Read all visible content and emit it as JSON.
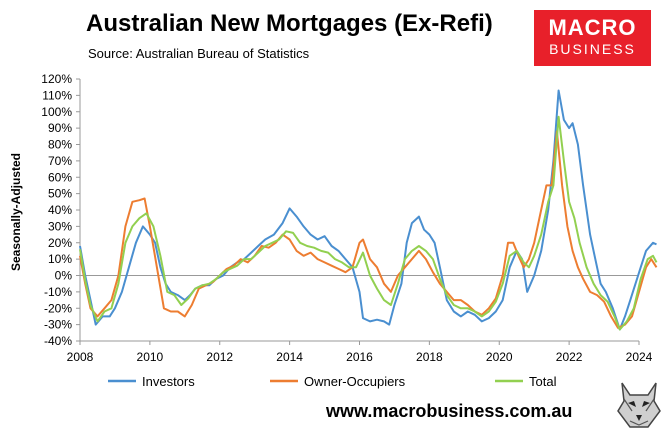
{
  "title": "Australian New Mortgages (Ex-Refi)",
  "subtitle": "Source: Australian Bureau of Statistics",
  "brand": {
    "line1": "MACRO",
    "line2": "BUSINESS",
    "color": "#e8202a"
  },
  "website": "www.macrobusiness.com.au",
  "chart_data": {
    "type": "line",
    "title": "Australian New Mortgages (Ex-Refi)",
    "ylabel": "Seasonally-Adjusted",
    "xlabel": "",
    "xlim": [
      2008,
      2024
    ],
    "ylim": [
      -40,
      120
    ],
    "y_ticks": [
      "120%",
      "110%",
      "100%",
      "90%",
      "80%",
      "70%",
      "60%",
      "50%",
      "40%",
      "30%",
      "20%",
      "10%",
      "0%",
      "-10%",
      "-20%",
      "-30%",
      "-40%"
    ],
    "x_ticks": [
      "2008",
      "2010",
      "2012",
      "2014",
      "2016",
      "2018",
      "2020",
      "2022",
      "2024"
    ],
    "grid": false,
    "legend_position": "bottom",
    "series": [
      {
        "name": "Investors",
        "color": "#4a8fd0",
        "points": [
          [
            2008.0,
            18
          ],
          [
            2008.15,
            0
          ],
          [
            2008.3,
            -15
          ],
          [
            2008.45,
            -30
          ],
          [
            2008.65,
            -25
          ],
          [
            2008.85,
            -25
          ],
          [
            2009.0,
            -20
          ],
          [
            2009.2,
            -10
          ],
          [
            2009.4,
            5
          ],
          [
            2009.6,
            20
          ],
          [
            2009.8,
            30
          ],
          [
            2010.0,
            25
          ],
          [
            2010.15,
            20
          ],
          [
            2010.3,
            5
          ],
          [
            2010.45,
            -5
          ],
          [
            2010.6,
            -10
          ],
          [
            2010.8,
            -12
          ],
          [
            2011.0,
            -15
          ],
          [
            2011.15,
            -12
          ],
          [
            2011.3,
            -8
          ],
          [
            2011.5,
            -6
          ],
          [
            2011.7,
            -6
          ],
          [
            2011.9,
            -2
          ],
          [
            2012.1,
            0
          ],
          [
            2012.3,
            5
          ],
          [
            2012.5,
            8
          ],
          [
            2012.7,
            10
          ],
          [
            2012.9,
            14
          ],
          [
            2013.1,
            18
          ],
          [
            2013.3,
            22
          ],
          [
            2013.55,
            25
          ],
          [
            2013.8,
            32
          ],
          [
            2014.0,
            41
          ],
          [
            2014.2,
            36
          ],
          [
            2014.4,
            30
          ],
          [
            2014.6,
            25
          ],
          [
            2014.8,
            22
          ],
          [
            2015.0,
            24
          ],
          [
            2015.2,
            18
          ],
          [
            2015.4,
            15
          ],
          [
            2015.6,
            10
          ],
          [
            2015.8,
            5
          ],
          [
            2016.0,
            -10
          ],
          [
            2016.1,
            -26
          ],
          [
            2016.3,
            -28
          ],
          [
            2016.5,
            -27
          ],
          [
            2016.7,
            -28
          ],
          [
            2016.85,
            -30
          ],
          [
            2017.0,
            -18
          ],
          [
            2017.2,
            -5
          ],
          [
            2017.35,
            20
          ],
          [
            2017.5,
            32
          ],
          [
            2017.7,
            36
          ],
          [
            2017.85,
            28
          ],
          [
            2018.0,
            25
          ],
          [
            2018.15,
            20
          ],
          [
            2018.3,
            5
          ],
          [
            2018.5,
            -15
          ],
          [
            2018.7,
            -22
          ],
          [
            2018.9,
            -25
          ],
          [
            2019.1,
            -22
          ],
          [
            2019.3,
            -24
          ],
          [
            2019.5,
            -28
          ],
          [
            2019.7,
            -26
          ],
          [
            2019.9,
            -22
          ],
          [
            2020.1,
            -15
          ],
          [
            2020.3,
            5
          ],
          [
            2020.5,
            15
          ],
          [
            2020.65,
            10
          ],
          [
            2020.8,
            -10
          ],
          [
            2021.0,
            0
          ],
          [
            2021.2,
            15
          ],
          [
            2021.4,
            40
          ],
          [
            2021.55,
            70
          ],
          [
            2021.7,
            113
          ],
          [
            2021.85,
            95
          ],
          [
            2022.0,
            90
          ],
          [
            2022.1,
            93
          ],
          [
            2022.25,
            80
          ],
          [
            2022.4,
            55
          ],
          [
            2022.6,
            25
          ],
          [
            2022.75,
            10
          ],
          [
            2022.9,
            -5
          ],
          [
            2023.05,
            -10
          ],
          [
            2023.25,
            -20
          ],
          [
            2023.45,
            -33
          ],
          [
            2023.6,
            -25
          ],
          [
            2023.75,
            -15
          ],
          [
            2023.9,
            -5
          ],
          [
            2024.05,
            5
          ],
          [
            2024.2,
            15
          ],
          [
            2024.4,
            20
          ],
          [
            2024.5,
            19
          ]
        ]
      },
      {
        "name": "Owner-Occupiers",
        "color": "#ed7d31",
        "points": [
          [
            2008.0,
            12
          ],
          [
            2008.15,
            -5
          ],
          [
            2008.3,
            -20
          ],
          [
            2008.5,
            -25
          ],
          [
            2008.7,
            -20
          ],
          [
            2008.9,
            -15
          ],
          [
            2009.1,
            0
          ],
          [
            2009.3,
            30
          ],
          [
            2009.5,
            45
          ],
          [
            2009.7,
            46
          ],
          [
            2009.85,
            47
          ],
          [
            2010.0,
            30
          ],
          [
            2010.2,
            5
          ],
          [
            2010.4,
            -20
          ],
          [
            2010.6,
            -22
          ],
          [
            2010.8,
            -22
          ],
          [
            2011.0,
            -25
          ],
          [
            2011.2,
            -18
          ],
          [
            2011.4,
            -8
          ],
          [
            2011.6,
            -6
          ],
          [
            2011.8,
            -4
          ],
          [
            2012.0,
            0
          ],
          [
            2012.2,
            4
          ],
          [
            2012.4,
            6
          ],
          [
            2012.6,
            10
          ],
          [
            2012.8,
            8
          ],
          [
            2013.0,
            12
          ],
          [
            2013.2,
            18
          ],
          [
            2013.4,
            17
          ],
          [
            2013.6,
            20
          ],
          [
            2013.8,
            25
          ],
          [
            2014.0,
            22
          ],
          [
            2014.2,
            15
          ],
          [
            2014.4,
            12
          ],
          [
            2014.6,
            14
          ],
          [
            2014.8,
            10
          ],
          [
            2015.0,
            8
          ],
          [
            2015.2,
            6
          ],
          [
            2015.4,
            4
          ],
          [
            2015.6,
            2
          ],
          [
            2015.8,
            5
          ],
          [
            2016.0,
            20
          ],
          [
            2016.1,
            22
          ],
          [
            2016.3,
            10
          ],
          [
            2016.5,
            5
          ],
          [
            2016.7,
            -5
          ],
          [
            2016.9,
            -10
          ],
          [
            2017.1,
            0
          ],
          [
            2017.3,
            5
          ],
          [
            2017.5,
            10
          ],
          [
            2017.7,
            15
          ],
          [
            2017.9,
            10
          ],
          [
            2018.1,
            2
          ],
          [
            2018.3,
            -5
          ],
          [
            2018.5,
            -10
          ],
          [
            2018.7,
            -15
          ],
          [
            2018.9,
            -15
          ],
          [
            2019.1,
            -18
          ],
          [
            2019.3,
            -22
          ],
          [
            2019.5,
            -24
          ],
          [
            2019.7,
            -20
          ],
          [
            2019.9,
            -14
          ],
          [
            2020.1,
            0
          ],
          [
            2020.25,
            20
          ],
          [
            2020.4,
            20
          ],
          [
            2020.55,
            12
          ],
          [
            2020.7,
            5
          ],
          [
            2020.85,
            10
          ],
          [
            2021.0,
            20
          ],
          [
            2021.15,
            35
          ],
          [
            2021.35,
            55
          ],
          [
            2021.5,
            55
          ],
          [
            2021.65,
            88
          ],
          [
            2021.8,
            55
          ],
          [
            2021.95,
            30
          ],
          [
            2022.1,
            15
          ],
          [
            2022.25,
            5
          ],
          [
            2022.4,
            -2
          ],
          [
            2022.6,
            -10
          ],
          [
            2022.8,
            -12
          ],
          [
            2023.0,
            -16
          ],
          [
            2023.2,
            -25
          ],
          [
            2023.4,
            -32
          ],
          [
            2023.6,
            -30
          ],
          [
            2023.8,
            -25
          ],
          [
            2024.0,
            -10
          ],
          [
            2024.2,
            5
          ],
          [
            2024.35,
            10
          ],
          [
            2024.5,
            5
          ]
        ]
      },
      {
        "name": "Total",
        "color": "#92d050",
        "points": [
          [
            2008.0,
            16
          ],
          [
            2008.15,
            -3
          ],
          [
            2008.3,
            -18
          ],
          [
            2008.5,
            -28
          ],
          [
            2008.7,
            -22
          ],
          [
            2008.9,
            -20
          ],
          [
            2009.1,
            -5
          ],
          [
            2009.3,
            20
          ],
          [
            2009.5,
            30
          ],
          [
            2009.7,
            35
          ],
          [
            2009.9,
            38
          ],
          [
            2010.1,
            30
          ],
          [
            2010.3,
            12
          ],
          [
            2010.5,
            -10
          ],
          [
            2010.7,
            -12
          ],
          [
            2010.9,
            -18
          ],
          [
            2011.1,
            -14
          ],
          [
            2011.3,
            -8
          ],
          [
            2011.5,
            -6
          ],
          [
            2011.7,
            -5
          ],
          [
            2011.9,
            -2
          ],
          [
            2012.1,
            2
          ],
          [
            2012.3,
            4
          ],
          [
            2012.5,
            6
          ],
          [
            2012.7,
            10
          ],
          [
            2012.9,
            10
          ],
          [
            2013.1,
            14
          ],
          [
            2013.3,
            18
          ],
          [
            2013.5,
            20
          ],
          [
            2013.7,
            22
          ],
          [
            2013.9,
            27
          ],
          [
            2014.1,
            26
          ],
          [
            2014.3,
            20
          ],
          [
            2014.5,
            18
          ],
          [
            2014.7,
            17
          ],
          [
            2014.9,
            15
          ],
          [
            2015.1,
            14
          ],
          [
            2015.3,
            10
          ],
          [
            2015.5,
            8
          ],
          [
            2015.7,
            5
          ],
          [
            2015.9,
            5
          ],
          [
            2016.1,
            14
          ],
          [
            2016.3,
            0
          ],
          [
            2016.5,
            -8
          ],
          [
            2016.7,
            -15
          ],
          [
            2016.9,
            -18
          ],
          [
            2017.1,
            -5
          ],
          [
            2017.3,
            10
          ],
          [
            2017.5,
            15
          ],
          [
            2017.7,
            18
          ],
          [
            2017.9,
            15
          ],
          [
            2018.1,
            10
          ],
          [
            2018.3,
            -2
          ],
          [
            2018.5,
            -12
          ],
          [
            2018.7,
            -18
          ],
          [
            2018.9,
            -20
          ],
          [
            2019.1,
            -20
          ],
          [
            2019.3,
            -22
          ],
          [
            2019.5,
            -25
          ],
          [
            2019.7,
            -22
          ],
          [
            2019.9,
            -16
          ],
          [
            2020.1,
            -5
          ],
          [
            2020.3,
            12
          ],
          [
            2020.5,
            15
          ],
          [
            2020.7,
            8
          ],
          [
            2020.85,
            5
          ],
          [
            2021.0,
            12
          ],
          [
            2021.2,
            25
          ],
          [
            2021.4,
            45
          ],
          [
            2021.55,
            55
          ],
          [
            2021.7,
            97
          ],
          [
            2021.85,
            70
          ],
          [
            2022.0,
            45
          ],
          [
            2022.15,
            35
          ],
          [
            2022.3,
            20
          ],
          [
            2022.5,
            5
          ],
          [
            2022.7,
            -5
          ],
          [
            2022.9,
            -12
          ],
          [
            2023.1,
            -16
          ],
          [
            2023.3,
            -25
          ],
          [
            2023.45,
            -33
          ],
          [
            2023.65,
            -28
          ],
          [
            2023.85,
            -20
          ],
          [
            2024.05,
            -2
          ],
          [
            2024.25,
            10
          ],
          [
            2024.4,
            12
          ],
          [
            2024.5,
            8
          ]
        ]
      }
    ]
  }
}
